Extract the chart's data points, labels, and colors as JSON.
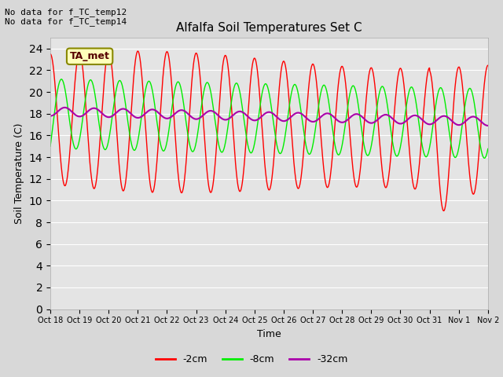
{
  "title": "Alfalfa Soil Temperatures Set C",
  "xlabel": "Time",
  "ylabel": "Soil Temperature (C)",
  "top_left_text": "No data for f_TC_temp12\nNo data for f_TC_temp14",
  "legend_box_label": "TA_met",
  "ylim": [
    0,
    25
  ],
  "yticks": [
    0,
    2,
    4,
    6,
    8,
    10,
    12,
    14,
    16,
    18,
    20,
    22,
    24
  ],
  "x_tick_labels": [
    "Oct 18",
    "Oct 19",
    "Oct 20",
    "Oct 21",
    "Oct 22",
    "Oct 23",
    "Oct 24",
    "Oct 25",
    "Oct 26",
    "Oct 27",
    "Oct 28",
    "Oct 29",
    "Oct 30",
    "Oct 31",
    "Nov 1",
    "Nov 2"
  ],
  "background_color": "#d8d8d8",
  "plot_bg_color": "#e4e4e4",
  "grid_color": "#ffffff",
  "line_2cm_color": "#ff0000",
  "line_8cm_color": "#00ee00",
  "line_32cm_color": "#aa00aa",
  "legend_labels": [
    "-2cm",
    "-8cm",
    "-32cm"
  ],
  "figsize": [
    6.4,
    4.8
  ],
  "dpi": 100
}
